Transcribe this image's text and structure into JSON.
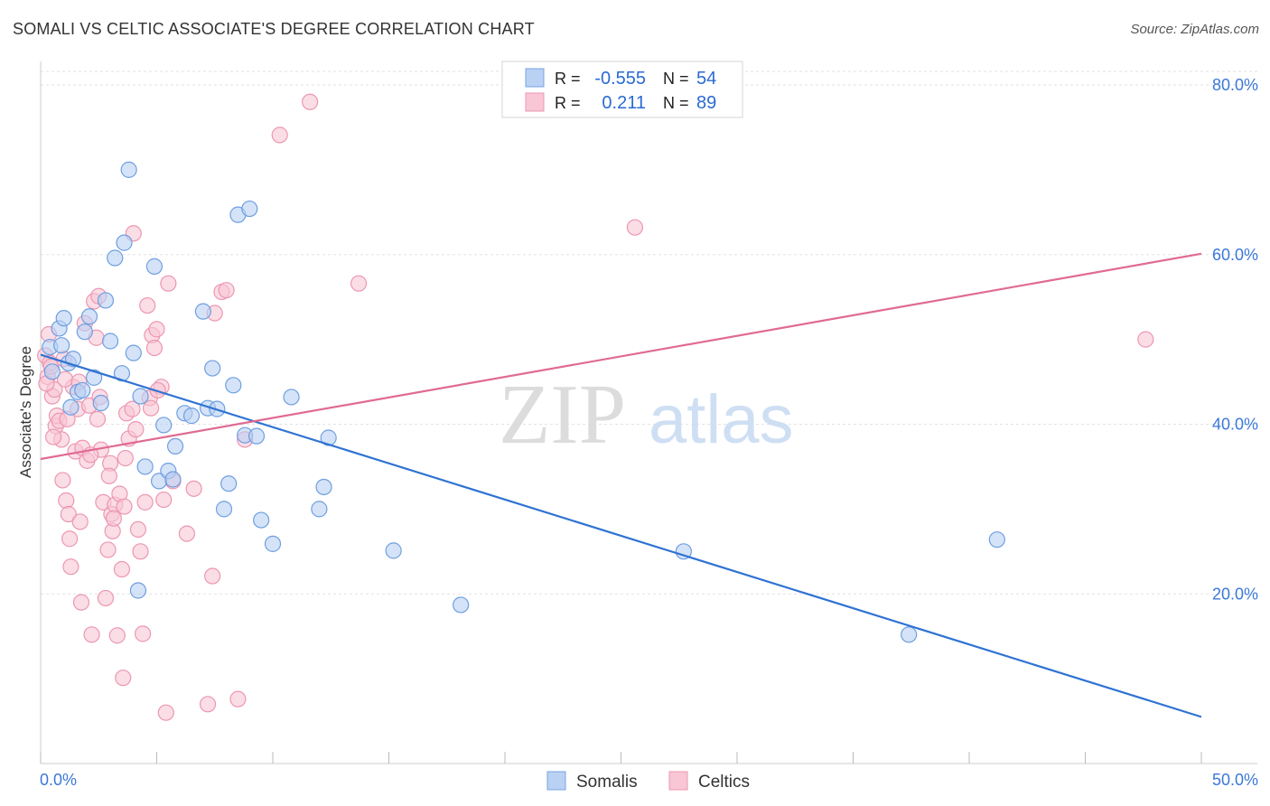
{
  "title": "SOMALI VS CELTIC ASSOCIATE'S DEGREE CORRELATION CHART",
  "source": "Source: ZipAtlas.com",
  "watermark": {
    "zip": "ZIP",
    "atlas": "atlas"
  },
  "legend": {
    "rows": [
      {
        "r_label": "R =",
        "r_value": "-0.555",
        "n_label": "N =",
        "n_value": "54",
        "color": "#b9d1f3",
        "stroke": "#7aa4e3"
      },
      {
        "r_label": "R =",
        "r_value": "0.211",
        "n_label": "N =",
        "n_value": "89",
        "color": "#f8c6d5",
        "stroke": "#ec97b1"
      }
    ]
  },
  "chart_data": {
    "type": "scatter",
    "title": "SOMALI VS CELTIC ASSOCIATE'S DEGREE CORRELATION CHART",
    "xlabel": "",
    "ylabel": "Associate's Degree",
    "xlim": [
      0,
      50
    ],
    "ylim": [
      0,
      80
    ],
    "x_tick_labels": [
      "0.0%",
      "50.0%"
    ],
    "y_ticks": [
      20,
      40,
      60,
      80
    ],
    "y_tick_labels": [
      "20.0%",
      "40.0%",
      "60.0%",
      "80.0%"
    ],
    "grid": true,
    "series": [
      {
        "name": "Somalis",
        "color": "#b9d1f3",
        "stroke": "#6e9fe0",
        "line_color": "#2f73d2",
        "trend": {
          "x": [
            0,
            50
          ],
          "y": [
            48.2,
            5.5
          ]
        },
        "points": [
          [
            0.4,
            49.1
          ],
          [
            0.5,
            46.2
          ],
          [
            0.8,
            51.3
          ],
          [
            0.9,
            49.3
          ],
          [
            1.0,
            52.5
          ],
          [
            1.2,
            47.2
          ],
          [
            1.4,
            47.7
          ],
          [
            1.6,
            43.8
          ],
          [
            1.8,
            44.0
          ],
          [
            1.9,
            50.9
          ],
          [
            2.1,
            52.7
          ],
          [
            2.3,
            45.5
          ],
          [
            2.6,
            42.5
          ],
          [
            2.8,
            54.6
          ],
          [
            3.0,
            49.8
          ],
          [
            3.2,
            59.6
          ],
          [
            3.5,
            46.0
          ],
          [
            3.6,
            61.4
          ],
          [
            3.8,
            70.0
          ],
          [
            4.0,
            48.4
          ],
          [
            4.3,
            43.3
          ],
          [
            4.5,
            35.0
          ],
          [
            4.9,
            58.6
          ],
          [
            5.1,
            33.3
          ],
          [
            5.3,
            39.9
          ],
          [
            5.5,
            34.5
          ],
          [
            5.7,
            33.5
          ],
          [
            5.8,
            37.4
          ],
          [
            6.2,
            41.3
          ],
          [
            6.5,
            41.0
          ],
          [
            7.0,
            53.3
          ],
          [
            7.2,
            41.9
          ],
          [
            7.4,
            46.6
          ],
          [
            7.6,
            41.8
          ],
          [
            7.9,
            30.0
          ],
          [
            8.1,
            33.0
          ],
          [
            8.3,
            44.6
          ],
          [
            8.5,
            64.7
          ],
          [
            8.8,
            38.7
          ],
          [
            9.0,
            65.4
          ],
          [
            9.3,
            38.6
          ],
          [
            9.5,
            28.7
          ],
          [
            10.0,
            25.9
          ],
          [
            10.8,
            43.2
          ],
          [
            12.0,
            30.0
          ],
          [
            12.2,
            32.6
          ],
          [
            12.4,
            38.4
          ],
          [
            15.2,
            25.1
          ],
          [
            18.1,
            18.7
          ],
          [
            27.7,
            25.0
          ],
          [
            37.4,
            15.2
          ],
          [
            41.2,
            26.4
          ],
          [
            4.2,
            20.4
          ],
          [
            1.3,
            42.0
          ]
        ]
      },
      {
        "name": "Celtics",
        "color": "#f8c6d5",
        "stroke": "#ec97b1",
        "line_color": "#e06a93",
        "trend": {
          "x": [
            0,
            50
          ],
          "y": [
            35.9,
            60.1
          ]
        },
        "points": [
          [
            0.2,
            48.1
          ],
          [
            0.3,
            45.6
          ],
          [
            0.35,
            50.6
          ],
          [
            0.4,
            47.2
          ],
          [
            0.5,
            43.3
          ],
          [
            0.6,
            44.1
          ],
          [
            0.65,
            39.8
          ],
          [
            0.7,
            41.0
          ],
          [
            0.8,
            40.4
          ],
          [
            0.9,
            38.2
          ],
          [
            0.95,
            33.4
          ],
          [
            1.0,
            47.7
          ],
          [
            1.1,
            31.0
          ],
          [
            1.2,
            29.4
          ],
          [
            1.25,
            26.5
          ],
          [
            1.3,
            23.2
          ],
          [
            1.4,
            44.4
          ],
          [
            1.5,
            36.8
          ],
          [
            1.6,
            41.8
          ],
          [
            1.7,
            28.5
          ],
          [
            1.75,
            19.0
          ],
          [
            1.8,
            37.2
          ],
          [
            1.9,
            51.9
          ],
          [
            2.0,
            35.7
          ],
          [
            2.1,
            42.2
          ],
          [
            2.2,
            15.2
          ],
          [
            2.3,
            54.5
          ],
          [
            2.4,
            50.2
          ],
          [
            2.5,
            55.1
          ],
          [
            2.55,
            43.2
          ],
          [
            2.6,
            37.0
          ],
          [
            2.7,
            30.8
          ],
          [
            2.8,
            19.5
          ],
          [
            2.9,
            25.2
          ],
          [
            3.0,
            35.4
          ],
          [
            3.05,
            29.4
          ],
          [
            3.1,
            27.4
          ],
          [
            3.2,
            30.5
          ],
          [
            3.3,
            15.1
          ],
          [
            3.4,
            31.8
          ],
          [
            3.5,
            22.9
          ],
          [
            3.55,
            10.1
          ],
          [
            3.6,
            30.3
          ],
          [
            3.7,
            41.3
          ],
          [
            3.8,
            38.3
          ],
          [
            4.0,
            62.5
          ],
          [
            4.1,
            39.4
          ],
          [
            4.2,
            27.6
          ],
          [
            4.3,
            25.0
          ],
          [
            4.4,
            15.3
          ],
          [
            4.5,
            30.8
          ],
          [
            4.6,
            54.0
          ],
          [
            4.7,
            43.1
          ],
          [
            4.8,
            50.5
          ],
          [
            4.9,
            49.0
          ],
          [
            5.0,
            51.2
          ],
          [
            5.2,
            44.4
          ],
          [
            5.3,
            31.1
          ],
          [
            5.4,
            6.0
          ],
          [
            5.5,
            56.6
          ],
          [
            5.7,
            33.3
          ],
          [
            6.3,
            27.1
          ],
          [
            6.6,
            32.4
          ],
          [
            7.2,
            7.0
          ],
          [
            7.4,
            22.1
          ],
          [
            7.5,
            53.1
          ],
          [
            7.8,
            55.6
          ],
          [
            8.0,
            55.8
          ],
          [
            8.5,
            7.6
          ],
          [
            8.8,
            38.2
          ],
          [
            10.3,
            74.1
          ],
          [
            11.6,
            78.0
          ],
          [
            13.7,
            56.6
          ],
          [
            25.6,
            63.2
          ],
          [
            47.6,
            50.0
          ],
          [
            0.25,
            44.8
          ],
          [
            1.15,
            40.6
          ],
          [
            2.15,
            36.4
          ],
          [
            3.15,
            28.9
          ],
          [
            0.45,
            46.8
          ],
          [
            1.05,
            45.3
          ],
          [
            2.45,
            40.6
          ],
          [
            3.65,
            36.0
          ],
          [
            0.55,
            38.5
          ],
          [
            4.75,
            41.9
          ],
          [
            1.65,
            45.0
          ],
          [
            2.95,
            33.9
          ],
          [
            3.95,
            41.8
          ],
          [
            5.05,
            44.0
          ]
        ]
      }
    ]
  }
}
